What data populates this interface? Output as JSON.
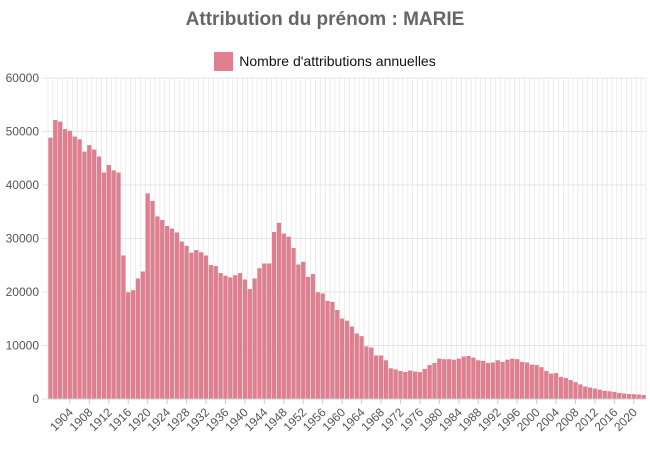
{
  "colors": {
    "bar": "#e07f8f",
    "bar_edge": "#d46878",
    "grid": "#e4e4e4",
    "title": "#666666"
  },
  "chart_data": {
    "type": "bar",
    "title": "Attribution du prénom : MARIE",
    "xlabel": "",
    "ylabel": "",
    "legend": {
      "position": "top",
      "entries": [
        "Nombre d'attributions annuelles"
      ]
    },
    "grid": true,
    "ylim": [
      0,
      60000
    ],
    "yticks": [
      "0",
      "10000",
      "20000",
      "30000",
      "40000",
      "50000",
      "60000"
    ],
    "xticks": [
      "1904",
      "1908",
      "1912",
      "1916",
      "1920",
      "1924",
      "1928",
      "1932",
      "1936",
      "1940",
      "1944",
      "1948",
      "1952",
      "1956",
      "1960",
      "1964",
      "1968",
      "1972",
      "1976",
      "1980",
      "1984",
      "1988",
      "1992",
      "1996",
      "2000",
      "2004",
      "2008",
      "2012",
      "2016",
      "2020"
    ],
    "categories": [
      1900,
      1901,
      1902,
      1903,
      1904,
      1905,
      1906,
      1907,
      1908,
      1909,
      1910,
      1911,
      1912,
      1913,
      1914,
      1915,
      1916,
      1917,
      1918,
      1919,
      1920,
      1921,
      1922,
      1923,
      1924,
      1925,
      1926,
      1927,
      1928,
      1929,
      1930,
      1931,
      1932,
      1933,
      1934,
      1935,
      1936,
      1937,
      1938,
      1939,
      1940,
      1941,
      1942,
      1943,
      1944,
      1945,
      1946,
      1947,
      1948,
      1949,
      1950,
      1951,
      1952,
      1953,
      1954,
      1955,
      1956,
      1957,
      1958,
      1959,
      1960,
      1961,
      1962,
      1963,
      1964,
      1965,
      1966,
      1967,
      1968,
      1969,
      1970,
      1971,
      1972,
      1973,
      1974,
      1975,
      1976,
      1977,
      1978,
      1979,
      1980,
      1981,
      1982,
      1983,
      1984,
      1985,
      1986,
      1987,
      1988,
      1989,
      1990,
      1991,
      1992,
      1993,
      1994,
      1995,
      1996,
      1997,
      1998,
      1999,
      2000,
      2001,
      2002,
      2003,
      2004,
      2005,
      2006,
      2007,
      2008,
      2009,
      2010,
      2011,
      2012,
      2013,
      2014,
      2015,
      2016,
      2017,
      2018,
      2019,
      2020,
      2021,
      2022
    ],
    "series": [
      {
        "name": "Nombre d'attributions annuelles",
        "values": [
          48800,
          52100,
          51800,
          50400,
          50100,
          49000,
          48500,
          46200,
          47400,
          46600,
          45300,
          42300,
          43700,
          42700,
          42300,
          26800,
          19900,
          20300,
          22500,
          23800,
          38400,
          37000,
          34100,
          33400,
          32300,
          31800,
          31100,
          29400,
          28600,
          27300,
          27800,
          27400,
          26800,
          25000,
          24800,
          23500,
          23000,
          22700,
          23100,
          23500,
          22300,
          20500,
          22500,
          24400,
          25300,
          25300,
          31200,
          32900,
          30900,
          30300,
          28200,
          25100,
          25600,
          22800,
          23300,
          19900,
          19700,
          18300,
          18100,
          16600,
          15000,
          14600,
          13500,
          12200,
          11700,
          9800,
          9600,
          8100,
          8100,
          7200,
          5700,
          5500,
          5200,
          5000,
          5300,
          5100,
          5000,
          5600,
          6300,
          6700,
          7500,
          7400,
          7400,
          7300,
          7500,
          7900,
          8000,
          7700,
          7200,
          7100,
          6700,
          6800,
          7200,
          6900,
          7300,
          7500,
          7400,
          6900,
          6800,
          6400,
          6300,
          5900,
          5200,
          4700,
          4800,
          4100,
          3900,
          3500,
          3100,
          2700,
          2300,
          2100,
          1900,
          1700,
          1500,
          1400,
          1300,
          1100,
          1000,
          900,
          850,
          800,
          700
        ]
      }
    ]
  }
}
